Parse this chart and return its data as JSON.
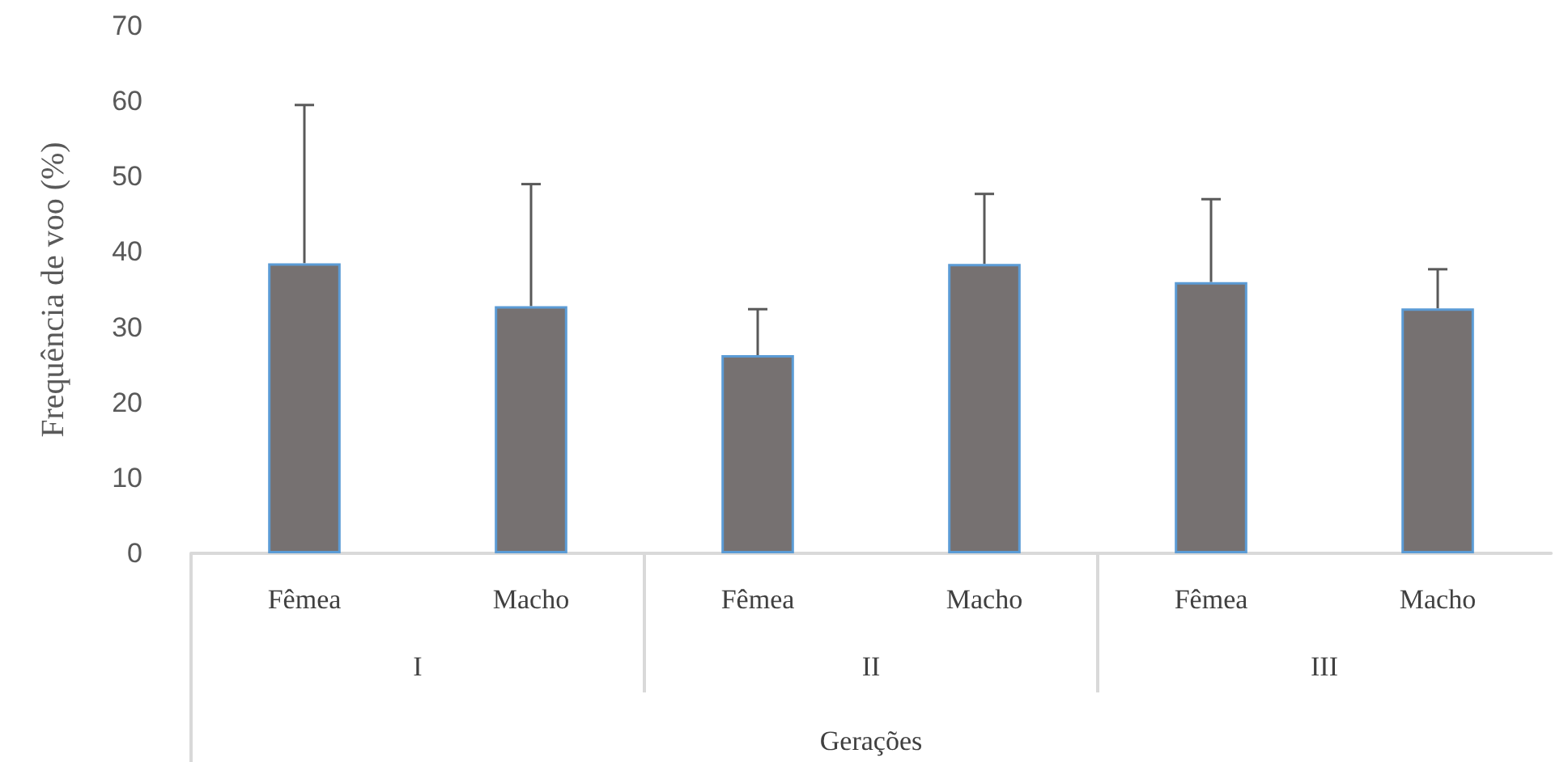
{
  "chart_data": {
    "type": "bar",
    "ylabel": "Frequência de voo (%)",
    "xlabel": "Gerações",
    "categories": [
      "Fêmea",
      "Macho",
      "Fêmea",
      "Macho",
      "Fêmea",
      "Macho"
    ],
    "values": [
      38.5,
      32.8,
      26.3,
      38.4,
      36.0,
      32.5
    ],
    "errors": [
      [
        38.5,
        59.5
      ],
      [
        32.8,
        49.0
      ],
      [
        26.3,
        32.4
      ],
      [
        38.4,
        47.7
      ],
      [
        36.0,
        47.0
      ],
      [
        32.5,
        37.7
      ]
    ],
    "color": "#767171",
    "annotations": [
      "I",
      "II",
      "III"
    ],
    "ylim": [
      0,
      70
    ],
    "yticks": [
      0,
      10,
      20,
      30,
      40,
      50,
      60,
      70
    ]
  }
}
